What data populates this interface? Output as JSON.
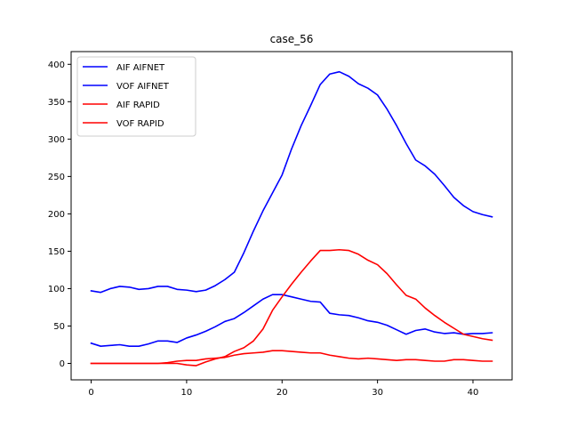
{
  "chart_data": {
    "type": "line",
    "title": "case_56",
    "xlabel": "",
    "ylabel": "",
    "xlim": [
      -2.1,
      44.1
    ],
    "ylim": [
      -22,
      417
    ],
    "xticks": [
      0,
      10,
      20,
      30,
      40
    ],
    "yticks": [
      0,
      50,
      100,
      150,
      200,
      250,
      300,
      350,
      400
    ],
    "grid": false,
    "legend_position": "top-left",
    "x": [
      0,
      1,
      2,
      3,
      4,
      5,
      6,
      7,
      8,
      9,
      10,
      11,
      12,
      13,
      14,
      15,
      16,
      17,
      18,
      19,
      20,
      21,
      22,
      23,
      24,
      25,
      26,
      27,
      28,
      29,
      30,
      31,
      32,
      33,
      34,
      35,
      36,
      37,
      38,
      39,
      40,
      41,
      42
    ],
    "series": [
      {
        "name": "AIF AIFNET",
        "color": "#0000ff",
        "values": [
          97,
          95,
          100,
          103,
          102,
          99,
          100,
          103,
          103,
          99,
          98,
          96,
          98,
          104,
          112,
          122,
          148,
          177,
          204,
          228,
          252,
          287,
          318,
          345,
          373,
          387,
          390,
          384,
          374,
          368,
          359,
          340,
          318,
          294,
          272,
          264,
          253,
          238,
          222,
          211,
          203,
          199,
          196
        ]
      },
      {
        "name": "VOF AIFNET",
        "color": "#0000ff",
        "values": [
          27,
          23,
          24,
          25,
          23,
          23,
          26,
          30,
          30,
          28,
          34,
          38,
          43,
          49,
          56,
          60,
          68,
          77,
          86,
          92,
          92,
          89,
          86,
          83,
          82,
          67,
          65,
          64,
          61,
          57,
          55,
          51,
          45,
          39,
          44,
          46,
          42,
          40,
          41,
          39,
          40,
          40,
          41
        ]
      },
      {
        "name": "AIF RAPID",
        "color": "#ff0000",
        "values": [
          0,
          0,
          0,
          0,
          0,
          0,
          0,
          0,
          0,
          0,
          -2,
          -3,
          2,
          6,
          9,
          16,
          21,
          30,
          46,
          71,
          89,
          106,
          122,
          137,
          151,
          151,
          152,
          151,
          146,
          138,
          132,
          120,
          105,
          91,
          86,
          74,
          64,
          55,
          47,
          39,
          36,
          33,
          31
        ]
      },
      {
        "name": "VOF RAPID",
        "color": "#ff0000",
        "values": [
          0,
          0,
          0,
          0,
          0,
          0,
          0,
          0,
          1,
          3,
          4,
          4,
          6,
          7,
          8,
          11,
          13,
          14,
          15,
          17,
          17,
          16,
          15,
          14,
          14,
          11,
          9,
          7,
          6,
          7,
          6,
          5,
          4,
          5,
          5,
          4,
          3,
          3,
          5,
          5,
          4,
          3,
          3
        ]
      }
    ]
  }
}
